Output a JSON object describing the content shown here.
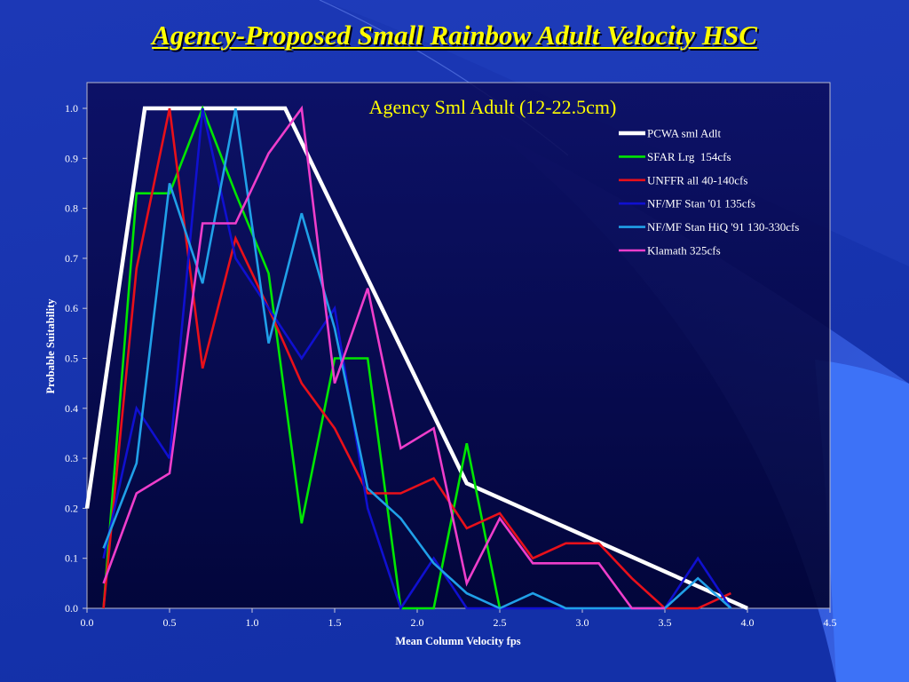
{
  "slide": {
    "title": "Agency-Proposed Small Rainbow Adult Velocity HSC"
  },
  "colors": {
    "title": "#FFFF00",
    "chart_title": "#FFFF00",
    "text": "#FFFFFF"
  },
  "chart_data": {
    "type": "line",
    "title": "Agency Sml Adult (12-22.5cm)",
    "xlabel": "Mean Column Velocity fps",
    "ylabel": "Probable Suitability",
    "xlim": [
      0,
      4.5
    ],
    "ylim": [
      0,
      1.0
    ],
    "x_ticks": [
      "0.0",
      "0.5",
      "1.0",
      "1.5",
      "2.0",
      "2.5",
      "3.0",
      "3.5",
      "4.0",
      "4.5"
    ],
    "y_ticks": [
      "0.0",
      "0.1",
      "0.2",
      "0.3",
      "0.4",
      "0.5",
      "0.6",
      "0.7",
      "0.8",
      "0.9",
      "1.0"
    ],
    "grid": false,
    "legend_position": "top-right",
    "series": [
      {
        "name": "PCWA sml Adlt",
        "color": "#FFFFFF",
        "x": [
          0.0,
          0.35,
          1.2,
          2.3,
          4.0
        ],
        "y": [
          0.2,
          1.0,
          1.0,
          0.25,
          0.0
        ]
      },
      {
        "name": "SFAR Lrg  154cfs",
        "color": "#00E600",
        "x": [
          0.1,
          0.3,
          0.5,
          0.7,
          0.9,
          1.1,
          1.3,
          1.5,
          1.7,
          1.9,
          2.1,
          2.3,
          2.5
        ],
        "y": [
          0.0,
          0.83,
          0.83,
          1.0,
          0.83,
          0.67,
          0.17,
          0.5,
          0.5,
          0.0,
          0.0,
          0.33,
          0.0
        ]
      },
      {
        "name": "UNFFR all 40-140cfs",
        "color": "#E8101A",
        "x": [
          0.1,
          0.3,
          0.5,
          0.7,
          0.9,
          1.1,
          1.3,
          1.5,
          1.7,
          1.9,
          2.1,
          2.3,
          2.5,
          2.7,
          2.9,
          3.1,
          3.3,
          3.5,
          3.7,
          3.9
        ],
        "y": [
          0.0,
          0.68,
          1.0,
          0.48,
          0.74,
          0.6,
          0.45,
          0.36,
          0.23,
          0.23,
          0.26,
          0.16,
          0.19,
          0.1,
          0.13,
          0.13,
          0.06,
          0.0,
          0.0,
          0.03
        ]
      },
      {
        "name": "NF/MF Stan '01 135cfs",
        "color": "#1010D0",
        "x": [
          0.1,
          0.3,
          0.5,
          0.7,
          0.9,
          1.1,
          1.3,
          1.5,
          1.7,
          1.9,
          2.1,
          2.3,
          2.5,
          2.7,
          2.9,
          3.1,
          3.3,
          3.5,
          3.7,
          3.9
        ],
        "y": [
          0.1,
          0.4,
          0.3,
          1.0,
          0.7,
          0.6,
          0.5,
          0.6,
          0.2,
          0.0,
          0.1,
          0.0,
          0.0,
          0.0,
          0.0,
          0.0,
          0.0,
          0.0,
          0.1,
          0.0
        ]
      },
      {
        "name": "NF/MF Stan HiQ '91 130-330cfs",
        "color": "#20A0E8",
        "x": [
          0.1,
          0.3,
          0.5,
          0.7,
          0.9,
          1.1,
          1.3,
          1.5,
          1.7,
          1.9,
          2.1,
          2.3,
          2.5,
          2.7,
          2.9,
          3.1,
          3.3,
          3.5,
          3.7,
          3.9
        ],
        "y": [
          0.12,
          0.29,
          0.85,
          0.65,
          1.0,
          0.53,
          0.79,
          0.56,
          0.24,
          0.18,
          0.09,
          0.03,
          0.0,
          0.03,
          0.0,
          0.0,
          0.0,
          0.0,
          0.06,
          0.0
        ]
      },
      {
        "name": "Klamath 325cfs",
        "color": "#EE3ECB",
        "x": [
          0.1,
          0.3,
          0.5,
          0.7,
          0.9,
          1.1,
          1.3,
          1.5,
          1.7,
          1.9,
          2.1,
          2.3,
          2.5,
          2.7,
          2.9,
          3.1,
          3.3,
          3.5
        ],
        "y": [
          0.05,
          0.23,
          0.27,
          0.77,
          0.77,
          0.91,
          1.0,
          0.45,
          0.64,
          0.32,
          0.36,
          0.05,
          0.18,
          0.09,
          0.09,
          0.09,
          0.0,
          0.0
        ]
      }
    ]
  }
}
